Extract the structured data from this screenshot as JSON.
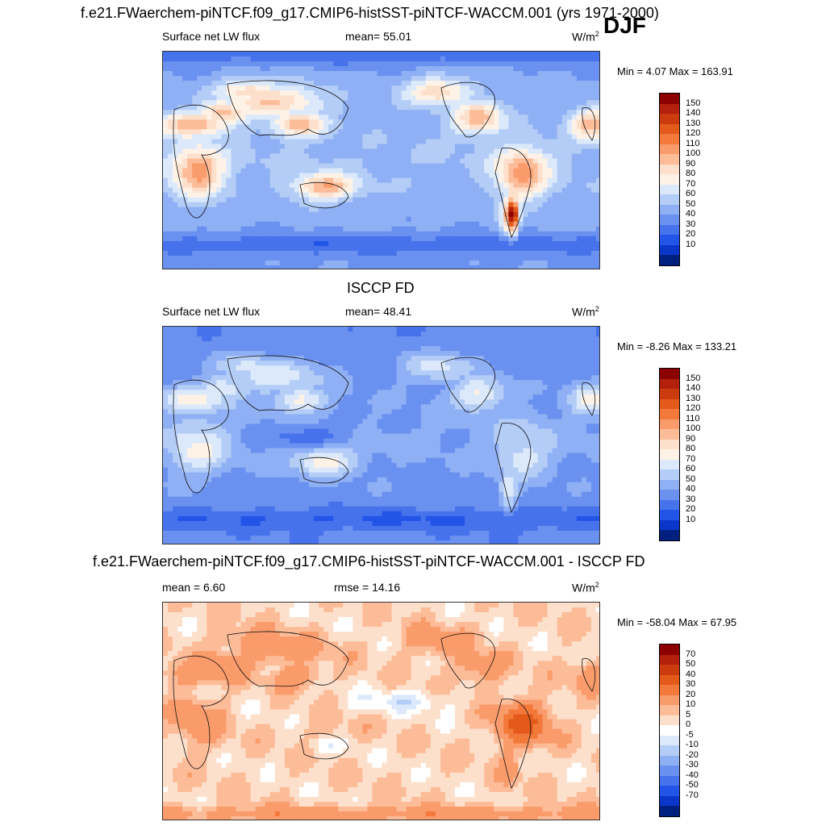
{
  "header": {
    "title": "f.e21.FWaerchem-piNTCF.f09_g17.CMIP6-histSST-piNTCF-WACCM.001 (yrs 1971-2000)",
    "season": "DJF"
  },
  "panels": [
    {
      "title": "",
      "variable": "Surface net LW flux",
      "stat_text": "mean=  55.01",
      "units": "W/m",
      "units_exp": "2",
      "minmax": "Min =   4.07 Max = 163.91"
    },
    {
      "title": "ISCCP FD",
      "variable": "Surface net LW flux",
      "stat_text": "mean=  48.41",
      "units": "W/m",
      "units_exp": "2",
      "minmax": "Min =  -8.26 Max = 133.21"
    },
    {
      "title": "f.e21.FWaerchem-piNTCF.f09_g17.CMIP6-histSST-piNTCF-WACCM.001 - ISCCP FD",
      "variable": "mean =   6.60",
      "stat_text": "rmse =  14.16",
      "units": "W/m",
      "units_exp": "2",
      "minmax": "Min = -58.04 Max =  67.95"
    }
  ],
  "chart_data": [
    {
      "type": "heatmap",
      "title": "Surface net LW flux (model)",
      "mean": 55.01,
      "min": 4.07,
      "max": 163.91,
      "units": "W/m2",
      "colorbar_levels": [
        "150",
        "140",
        "130",
        "120",
        "110",
        "100",
        "90",
        "80",
        "70",
        "60",
        "50",
        "40",
        "30",
        "20",
        "10"
      ],
      "colors": [
        "#8b0000",
        "#b3200b",
        "#cc3b0d",
        "#e45a1a",
        "#f3793b",
        "#fa9b6b",
        "#fdbc98",
        "#fde0cc",
        "#fef2e6",
        "#dbe9fb",
        "#b4cdf7",
        "#8fb0f4",
        "#6a91f0",
        "#4672ec",
        "#2354e8",
        "#0a36c9",
        "#002080"
      ]
    },
    {
      "type": "heatmap",
      "title": "Surface net LW flux (ISCCP FD)",
      "mean": 48.41,
      "min": -8.26,
      "max": 133.21,
      "units": "W/m2",
      "colorbar_levels": [
        "150",
        "140",
        "130",
        "120",
        "110",
        "100",
        "90",
        "80",
        "70",
        "60",
        "50",
        "40",
        "30",
        "20",
        "10"
      ],
      "colors": [
        "#8b0000",
        "#b3200b",
        "#cc3b0d",
        "#e45a1a",
        "#f3793b",
        "#fa9b6b",
        "#fdbc98",
        "#fde0cc",
        "#fef2e6",
        "#dbe9fb",
        "#b4cdf7",
        "#8fb0f4",
        "#6a91f0",
        "#4672ec",
        "#2354e8",
        "#0a36c9",
        "#002080"
      ]
    },
    {
      "type": "heatmap",
      "title": "Model - ISCCP FD difference",
      "mean": 6.6,
      "rmse": 14.16,
      "min": -58.04,
      "max": 67.95,
      "units": "W/m2",
      "colorbar_levels": [
        "70",
        "50",
        "40",
        "30",
        "20",
        "10",
        "5",
        "0",
        "-5",
        "-10",
        "-20",
        "-30",
        "-40",
        "-50",
        "-70"
      ],
      "colors": [
        "#8b0000",
        "#b3200b",
        "#cc3b0d",
        "#e45a1a",
        "#f3793b",
        "#fa9b6b",
        "#fdbc98",
        "#fde0cc",
        "#ffffff",
        "#dbe9fb",
        "#b4cdf7",
        "#8fb0f4",
        "#6a91f0",
        "#4672ec",
        "#2354e8",
        "#0a36c9",
        "#002080"
      ]
    }
  ]
}
